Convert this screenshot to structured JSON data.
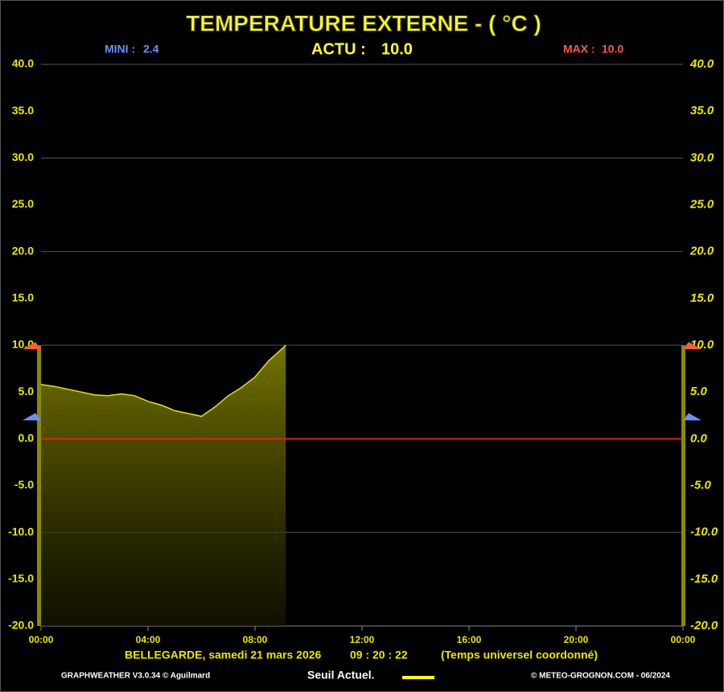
{
  "chart_data": {
    "type": "area",
    "title": "TEMPERATURE EXTERNE - ( °C )",
    "stats": {
      "labels": [
        "MINI :",
        "ACTU :",
        "MAX :"
      ],
      "values": [
        2.4,
        10.0,
        10.0
      ],
      "value_labels": [
        "2.4",
        "10.0",
        "10.0"
      ],
      "colors": [
        "#6f8fff",
        "#ffff33",
        "#ff5a3c"
      ]
    },
    "x": [
      0,
      0.5,
      1,
      1.5,
      2,
      2.5,
      3,
      3.5,
      4,
      4.5,
      5,
      5.5,
      6,
      6.5,
      7,
      7.5,
      8,
      8.5,
      9,
      9.15
    ],
    "series": [
      {
        "name": "Seuil Actuel.",
        "color": "#e6e600",
        "values": [
          5.8,
          5.6,
          5.3,
          5.0,
          4.7,
          4.6,
          4.8,
          4.6,
          4.0,
          3.6,
          3.0,
          2.7,
          2.4,
          3.4,
          4.6,
          5.5,
          6.6,
          8.3,
          9.6,
          10.0
        ]
      }
    ],
    "xlim": [
      0,
      24
    ],
    "xticks": [
      {
        "value": 0,
        "label": "00:00"
      },
      {
        "value": 4,
        "label": "04:00"
      },
      {
        "value": 8,
        "label": "08:00"
      },
      {
        "value": 12,
        "label": "12:00"
      },
      {
        "value": 16,
        "label": "16:00"
      },
      {
        "value": 20,
        "label": "20:00"
      },
      {
        "value": 24,
        "label": "00:00"
      }
    ],
    "ylim": [
      -20,
      40
    ],
    "yticks": [
      {
        "value": -20,
        "label": "-20.0"
      },
      {
        "value": -15,
        "label": "-15.0"
      },
      {
        "value": -10,
        "label": "-10.0"
      },
      {
        "value": -5,
        "label": "-5.0"
      },
      {
        "value": 0,
        "label": "0.0"
      },
      {
        "value": 5,
        "label": "5.0"
      },
      {
        "value": 10,
        "label": "10.0"
      },
      {
        "value": 15,
        "label": "15.0"
      },
      {
        "value": 20,
        "label": "20.0"
      },
      {
        "value": 25,
        "label": "25.0"
      },
      {
        "value": 30,
        "label": "30.0"
      },
      {
        "value": 35,
        "label": "35.0"
      },
      {
        "value": 40,
        "label": "40.0"
      }
    ],
    "grid_step": 10,
    "reference_line": {
      "value": 0,
      "color": "#e02020"
    },
    "footer": {
      "location": "BELLEGARDE, samedi 21 mars 2026",
      "time": "09 : 20 : 22",
      "timezone": "(Temps universel coordonné)",
      "credit": "GRAPHWEATHER V3.0.34 © Aguilmard",
      "copyright": "© METEO-GROGNON.COM - 06/2024"
    }
  }
}
